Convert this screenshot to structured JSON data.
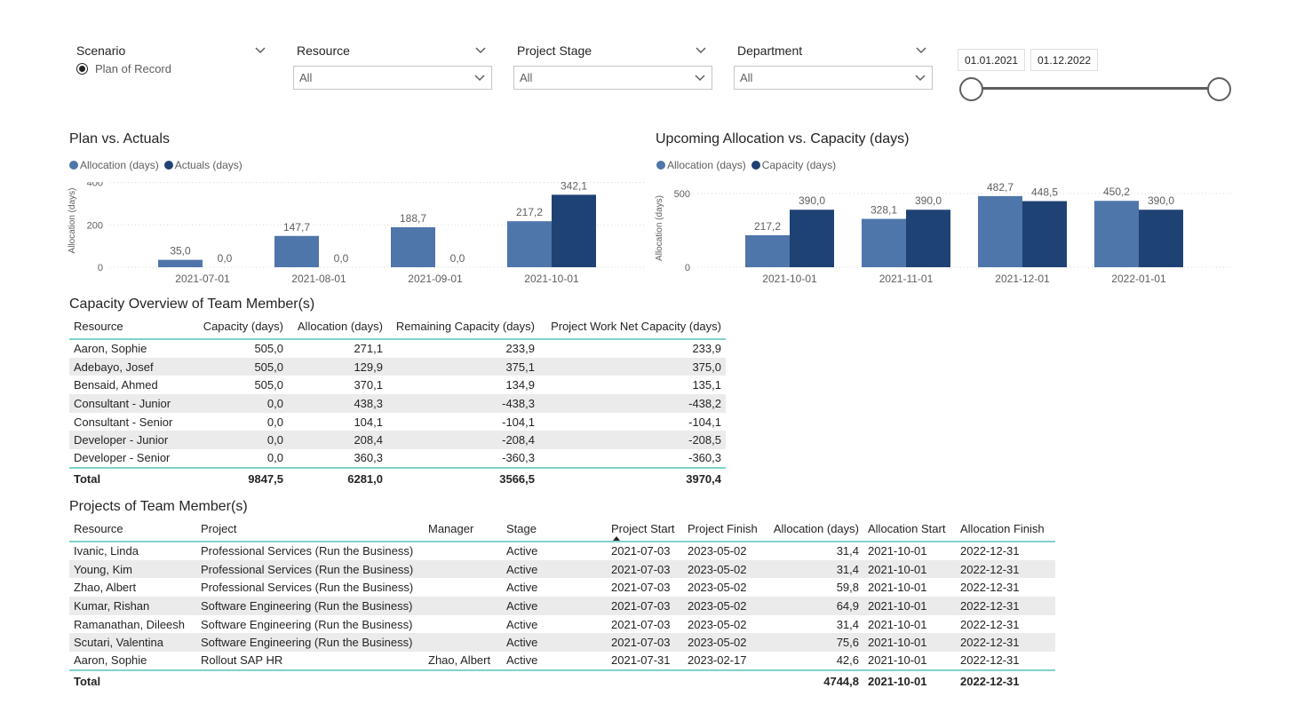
{
  "filters": {
    "scenario": {
      "label": "Scenario",
      "option": "Plan of Record"
    },
    "resource": {
      "label": "Resource",
      "value": "All"
    },
    "stage": {
      "label": "Project Stage",
      "value": "All"
    },
    "department": {
      "label": "Department",
      "value": "All"
    },
    "date_range": {
      "start": "01.01.2021",
      "end": "01.12.2022"
    }
  },
  "colors": {
    "light_bar": "#4f76aa",
    "dark_bar": "#1f4274",
    "accent": "#7fd3cc"
  },
  "chart_data": [
    {
      "type": "bar",
      "title": "Plan vs. Actuals",
      "ylabel": "Allocation (days)",
      "ylim": [
        0,
        440
      ],
      "yticks": [
        0,
        200,
        400
      ],
      "categories": [
        "2021-07-01",
        "2021-08-01",
        "2021-09-01",
        "2021-10-01"
      ],
      "series": [
        {
          "name": "Allocation (days)",
          "values": [
            35.0,
            147.7,
            188.7,
            217.2
          ],
          "labels": [
            "35,0",
            "147,7",
            "188,7",
            "217,2"
          ]
        },
        {
          "name": "Actuals (days)",
          "values": [
            0.0,
            0.0,
            0.0,
            342.1
          ],
          "labels": [
            "0,0",
            "0,0",
            "0,0",
            "342,1"
          ]
        }
      ]
    },
    {
      "type": "bar",
      "title": "Upcoming Allocation vs. Capacity (days)",
      "ylabel": "Allocation (days)",
      "ylim": [
        0,
        530
      ],
      "yticks": [
        0,
        500
      ],
      "categories": [
        "2021-10-01",
        "2021-11-01",
        "2021-12-01",
        "2022-01-01"
      ],
      "series": [
        {
          "name": "Allocation (days)",
          "values": [
            217.2,
            328.1,
            482.7,
            450.2
          ],
          "labels": [
            "217,2",
            "328,1",
            "482,7",
            "450,2"
          ]
        },
        {
          "name": "Capacity (days)",
          "values": [
            390.0,
            390.0,
            448.5,
            390.0
          ],
          "labels": [
            "390,0",
            "390,0",
            "448,5",
            "390,0"
          ]
        }
      ]
    }
  ],
  "capacity_table": {
    "title": "Capacity Overview of Team Member(s)",
    "headers": [
      "Resource",
      "Capacity (days)",
      "Allocation (days)",
      "Remaining Capacity (days)",
      "Project Work Net Capacity (days)"
    ],
    "rows": [
      [
        "Aaron, Sophie",
        "505,0",
        "271,1",
        "233,9",
        "233,9"
      ],
      [
        "Adebayo, Josef",
        "505,0",
        "129,9",
        "375,1",
        "375,0"
      ],
      [
        "Bensaid, Ahmed",
        "505,0",
        "370,1",
        "134,9",
        "135,1"
      ],
      [
        "Consultant - Junior",
        "0,0",
        "438,3",
        "-438,3",
        "-438,2"
      ],
      [
        "Consultant - Senior",
        "0,0",
        "104,1",
        "-104,1",
        "-104,1"
      ],
      [
        "Developer - Junior",
        "0,0",
        "208,4",
        "-208,4",
        "-208,5"
      ],
      [
        "Developer - Senior",
        "0,0",
        "360,3",
        "-360,3",
        "-360,3"
      ]
    ],
    "total": [
      "Total",
      "9847,5",
      "6281,0",
      "3566,5",
      "3970,4"
    ]
  },
  "projects_table": {
    "title": "Projects of Team Member(s)",
    "headers": [
      "Resource",
      "Project",
      "Manager",
      "Stage",
      "Project Start",
      "Project Finish",
      "Allocation (days)",
      "Allocation Start",
      "Allocation Finish"
    ],
    "rows": [
      [
        "Ivanic, Linda",
        "Professional Services (Run the Business)",
        "",
        "Active",
        "2021-07-03",
        "2023-05-02",
        "31,4",
        "2021-10-01",
        "2022-12-31"
      ],
      [
        "Young, Kim",
        "Professional Services (Run the Business)",
        "",
        "Active",
        "2021-07-03",
        "2023-05-02",
        "31,4",
        "2021-10-01",
        "2022-12-31"
      ],
      [
        "Zhao, Albert",
        "Professional Services (Run the Business)",
        "",
        "Active",
        "2021-07-03",
        "2023-05-02",
        "59,8",
        "2021-10-01",
        "2022-12-31"
      ],
      [
        "Kumar, Rishan",
        "Software Engineering (Run the Business)",
        "",
        "Active",
        "2021-07-03",
        "2023-05-02",
        "64,9",
        "2021-10-01",
        "2022-12-31"
      ],
      [
        "Ramanathan, Dileesh",
        "Software Engineering (Run the Business)",
        "",
        "Active",
        "2021-07-03",
        "2023-05-02",
        "31,4",
        "2021-10-01",
        "2022-12-31"
      ],
      [
        "Scutari, Valentina",
        "Software Engineering (Run the Business)",
        "",
        "Active",
        "2021-07-03",
        "2023-05-02",
        "75,6",
        "2021-10-01",
        "2022-12-31"
      ],
      [
        "Aaron, Sophie",
        "Rollout SAP HR",
        "Zhao, Albert",
        "Active",
        "2021-07-31",
        "2023-02-17",
        "42,6",
        "2021-10-01",
        "2022-12-31"
      ]
    ],
    "total": [
      "Total",
      "",
      "",
      "",
      "",
      "",
      "4744,8",
      "2021-10-01",
      "2022-12-31"
    ]
  }
}
